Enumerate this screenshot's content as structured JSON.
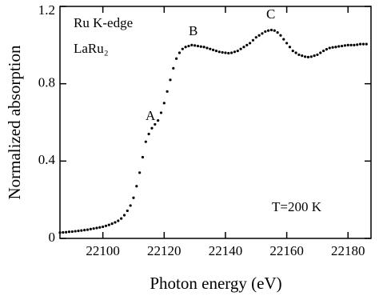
{
  "chart_data": {
    "type": "scatter",
    "xlabel": "Photon energy (eV)",
    "ylabel": "Normalized absorption",
    "annotations": [
      "Ru K-edge",
      "LaRu₂",
      "T=200 K",
      "A",
      "B",
      "C"
    ],
    "color": "#000000",
    "xlim": [
      22086,
      22187.5
    ],
    "ylim": [
      0,
      1.2
    ],
    "xticks": [
      22100,
      22120,
      22140,
      22160,
      22180
    ],
    "yticks": [
      0,
      0.4,
      0.8,
      1.2
    ],
    "x": [
      22086,
      22087,
      22088,
      22089,
      22090,
      22091,
      22092,
      22093,
      22094,
      22095,
      22096,
      22097,
      22098,
      22099,
      22100,
      22101,
      22102,
      22103,
      22104,
      22105,
      22106,
      22107,
      22108,
      22109,
      22110,
      22111,
      22112,
      22113,
      22114,
      22115,
      22116,
      22117,
      22118,
      22119,
      22120,
      22121,
      22122,
      22123,
      22124,
      22125,
      22126,
      22127,
      22128,
      22129,
      22130,
      22131,
      22132,
      22133,
      22134,
      22135,
      22136,
      22137,
      22138,
      22139,
      22140,
      22141,
      22142,
      22143,
      22144,
      22145,
      22146,
      22147,
      22148,
      22149,
      22150,
      22151,
      22152,
      22153,
      22154,
      22155,
      22156,
      22157,
      22158,
      22159,
      22160,
      22161,
      22162,
      22163,
      22164,
      22165,
      22166,
      22167,
      22168,
      22169,
      22170,
      22171,
      22172,
      22173,
      22174,
      22175,
      22176,
      22177,
      22178,
      22179,
      22180,
      22181,
      22182,
      22183,
      22184,
      22185,
      22186
    ],
    "values": [
      0.03,
      0.031,
      0.032,
      0.034,
      0.035,
      0.037,
      0.039,
      0.041,
      0.043,
      0.045,
      0.048,
      0.051,
      0.054,
      0.057,
      0.06,
      0.065,
      0.07,
      0.076,
      0.083,
      0.091,
      0.103,
      0.12,
      0.143,
      0.17,
      0.21,
      0.27,
      0.34,
      0.42,
      0.5,
      0.54,
      0.57,
      0.59,
      0.61,
      0.65,
      0.7,
      0.76,
      0.82,
      0.88,
      0.93,
      0.96,
      0.98,
      0.99,
      0.995,
      1.0,
      0.998,
      0.995,
      0.992,
      0.99,
      0.985,
      0.98,
      0.975,
      0.97,
      0.965,
      0.962,
      0.96,
      0.958,
      0.96,
      0.965,
      0.97,
      0.98,
      0.99,
      1.0,
      1.01,
      1.025,
      1.04,
      1.05,
      1.06,
      1.07,
      1.075,
      1.078,
      1.075,
      1.065,
      1.05,
      1.03,
      1.01,
      0.99,
      0.97,
      0.96,
      0.95,
      0.945,
      0.94,
      0.938,
      0.94,
      0.945,
      0.95,
      0.96,
      0.97,
      0.978,
      0.985,
      0.988,
      0.99,
      0.993,
      0.995,
      0.998,
      1.0,
      1.0,
      1.0,
      1.002,
      1.005,
      1.005,
      1.005
    ]
  }
}
